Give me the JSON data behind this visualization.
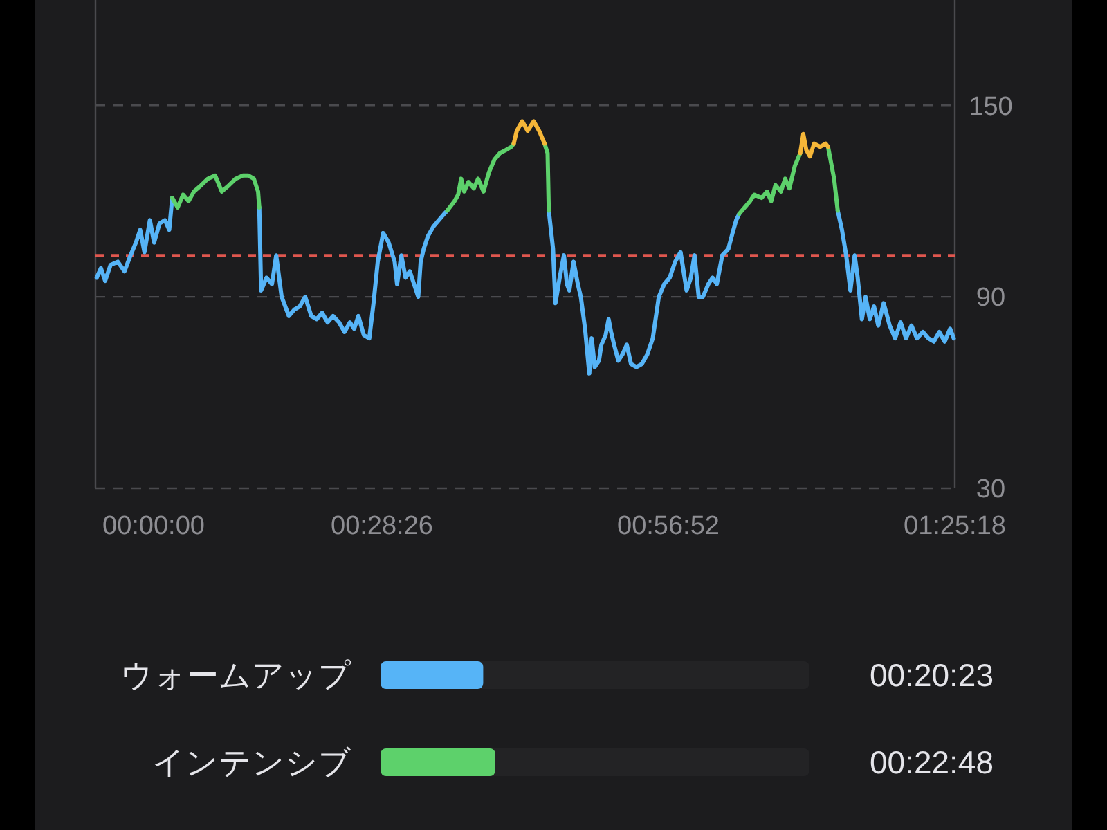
{
  "chart_data": [
    {
      "type": "line",
      "xlim": [
        0,
        1.42167
      ],
      "ylim": [
        30,
        183
      ],
      "xticks": [
        {
          "value": 0,
          "label": "00:00:00"
        },
        {
          "value": 0.47389,
          "label": "00:28:26"
        },
        {
          "value": 0.94778,
          "label": "00:56:52"
        },
        {
          "value": 1.42167,
          "label": "01:25:18"
        }
      ],
      "yticks": [
        30,
        90,
        150
      ],
      "grid": "y",
      "line_style": "solid",
      "marker": "none",
      "ref_lines": [
        {
          "axis": "y",
          "value": 103,
          "color": "#e0574f",
          "line_style": "dashed"
        }
      ],
      "series": [
        {
          "color": "#56b4f7",
          "x": [
            0.002,
            0.009,
            0.016,
            0.025,
            0.037,
            0.048,
            0.058,
            0.067,
            0.074,
            0.081,
            0.09,
            0.097,
            0.106,
            0.115,
            0.122,
            0.127,
            0.2,
            0.271,
            0.274,
            0.283,
            0.292,
            0.299,
            0.308,
            0.32,
            0.329,
            0.338,
            0.347,
            0.357,
            0.366,
            0.375,
            0.384,
            0.393,
            0.403,
            0.412,
            0.421,
            0.428,
            0.435,
            0.444,
            0.453,
            0.46,
            0.467,
            0.476,
            0.485,
            0.495,
            0.499,
            0.506,
            0.513,
            0.52,
            0.527,
            0.534,
            0.538,
            0.543,
            0.55,
            0.559,
            0.568,
            0.577,
            0.582,
            0.65,
            0.75,
            0.757,
            0.761,
            0.768,
            0.775,
            0.78,
            0.784,
            0.791,
            0.798,
            0.803,
            0.81,
            0.817,
            0.821,
            0.826,
            0.833,
            0.837,
            0.844,
            0.849,
            0.853,
            0.858,
            0.865,
            0.872,
            0.879,
            0.886,
            0.895,
            0.904,
            0.913,
            0.922,
            0.932,
            0.941,
            0.95,
            0.959,
            0.968,
            0.978,
            0.985,
            0.991,
            0.998,
            1.005,
            1.014,
            1.021,
            1.028,
            1.037,
            1.047,
            1.054,
            1.06,
            1.065,
            1.15,
            1.228,
            1.235,
            1.242,
            1.249,
            1.256,
            1.261,
            1.268,
            1.274,
            1.281,
            1.288,
            1.295,
            1.304,
            1.314,
            1.323,
            1.332,
            1.341,
            1.35,
            1.359,
            1.369,
            1.378,
            1.387,
            1.396,
            1.405,
            1.414,
            1.42
          ],
          "values": [
            96,
            99,
            95,
            100,
            101,
            98,
            103,
            107,
            111,
            104,
            114,
            107,
            113,
            114,
            111,
            121,
            null,
            118,
            92,
            96,
            94,
            103,
            90,
            84,
            86,
            87,
            90,
            84,
            83,
            85,
            82,
            84,
            82,
            79,
            82,
            80,
            84,
            78,
            77,
            88,
            101,
            110,
            107,
            101,
            94,
            103,
            96,
            98,
            94,
            90,
            101,
            105,
            109,
            112,
            114,
            116,
            117,
            null,
            117,
            105,
            88,
            96,
            103,
            94,
            92,
            101,
            94,
            90,
            80,
            66,
            77,
            68,
            70,
            75,
            78,
            83,
            79,
            75,
            70,
            72,
            75,
            69,
            68,
            69,
            72,
            77,
            90,
            94,
            96,
            101,
            104,
            92,
            96,
            103,
            90,
            90,
            94,
            96,
            94,
            103,
            105,
            110,
            114,
            116,
            null,
            117,
            111,
            103,
            92,
            103,
            96,
            83,
            90,
            83,
            87,
            81,
            88,
            81,
            77,
            82,
            77,
            81,
            77,
            79,
            77,
            76,
            79,
            76,
            80,
            77
          ]
        },
        {
          "color": "#5dd16b",
          "x": [
            0.127,
            0.136,
            0.145,
            0.154,
            0.163,
            0.175,
            0.186,
            0.198,
            0.209,
            0.221,
            0.232,
            0.244,
            0.253,
            0.262,
            0.269,
            0.271,
            0.4,
            0.582,
            0.594,
            0.6,
            0.605,
            0.61,
            0.617,
            0.626,
            0.633,
            0.642,
            0.651,
            0.66,
            0.669,
            0.679,
            0.688,
            0.692,
            0.72,
            0.743,
            0.748,
            0.75,
            0.9,
            1.065,
            1.083,
            1.09,
            1.102,
            1.111,
            1.118,
            1.125,
            1.134,
            1.141,
            1.148,
            1.157,
            1.166,
            1.19,
            1.212,
            1.222,
            1.228
          ],
          "values": [
            121,
            118,
            122,
            120,
            123,
            125,
            127,
            128,
            123,
            125,
            127,
            128,
            128,
            127,
            123,
            118,
            null,
            117,
            120,
            122,
            127,
            123,
            126,
            124,
            127,
            123,
            129,
            133,
            135,
            136,
            137,
            138,
            null,
            138,
            135,
            117,
            null,
            116,
            120,
            122,
            121,
            123,
            120,
            125,
            123,
            127,
            124,
            131,
            135,
            null,
            137,
            127,
            117
          ]
        },
        {
          "color": "#f5b638",
          "x": [
            0.692,
            0.697,
            0.706,
            0.715,
            0.725,
            0.734,
            0.743,
            0.9,
            1.166,
            1.171,
            1.176,
            1.182,
            1.189,
            1.199,
            1.208,
            1.212
          ],
          "values": [
            138,
            142,
            145,
            142,
            145,
            142,
            138,
            null,
            135,
            141,
            136,
            134,
            138,
            137,
            138,
            137
          ]
        }
      ]
    },
    {
      "type": "bar",
      "orientation": "horizontal",
      "categories": [
        "ウォームアップ",
        "インテンシブ"
      ],
      "values": [
        0.3397,
        0.38
      ],
      "colors": [
        "#56b4f7",
        "#5dd16b"
      ],
      "tick_labels": "y",
      "value_labels": [
        "00:20:23",
        "00:22:48"
      ]
    }
  ]
}
